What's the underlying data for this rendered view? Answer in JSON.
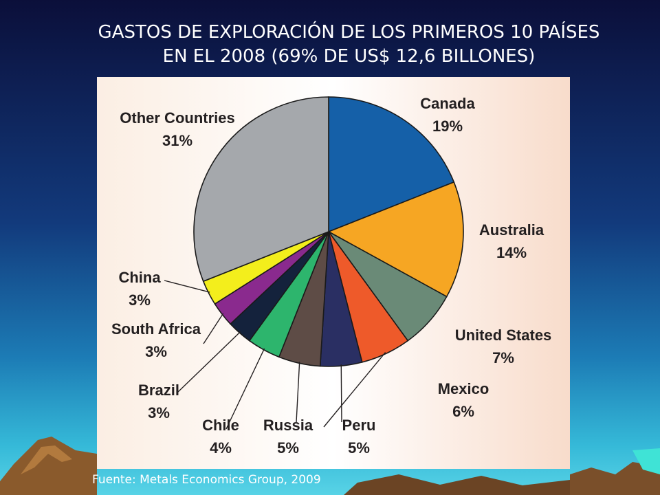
{
  "slide": {
    "title_line1": "GASTOS DE EXPLORACIÓN DE LOS PRIMEROS 10 PAÍSES",
    "title_line2": "EN EL 2008 (69% DE US$ 12,6 BILLONES)",
    "source": "Fuente: Metals Economics Group, 2009"
  },
  "chart_data": {
    "type": "pie",
    "title": "GASTOS DE EXPLORACIÓN DE LOS PRIMEROS 10 PAÍSES EN EL 2008 (69% DE US$ 12,6 BILLONES)",
    "start_angle_deg": 0,
    "direction": "clockwise",
    "slices": [
      {
        "label": "Canada",
        "value": 19,
        "value_label": "19%",
        "color": "#1560a8"
      },
      {
        "label": "Australia",
        "value": 14,
        "value_label": "14%",
        "color": "#f6a623"
      },
      {
        "label": "United States",
        "value": 7,
        "value_label": "7%",
        "color": "#6a8a77"
      },
      {
        "label": "Mexico",
        "value": 6,
        "value_label": "6%",
        "color": "#ee5a2a"
      },
      {
        "label": "Peru",
        "value": 5,
        "value_label": "5%",
        "color": "#2a2f63"
      },
      {
        "label": "Russia",
        "value": 5,
        "value_label": "5%",
        "color": "#5e4c46"
      },
      {
        "label": "Chile",
        "value": 4,
        "value_label": "4%",
        "color": "#2db56d"
      },
      {
        "label": "Brazil",
        "value": 3,
        "value_label": "3%",
        "color": "#14223c"
      },
      {
        "label": "South Africa",
        "value": 3,
        "value_label": "3%",
        "color": "#8a2a8e"
      },
      {
        "label": "China",
        "value": 3,
        "value_label": "3%",
        "color": "#f3ee1c"
      },
      {
        "label": "Other Countries",
        "value": 31,
        "value_label": "31%",
        "color": "#a5a8ac"
      }
    ],
    "legend": "none"
  }
}
